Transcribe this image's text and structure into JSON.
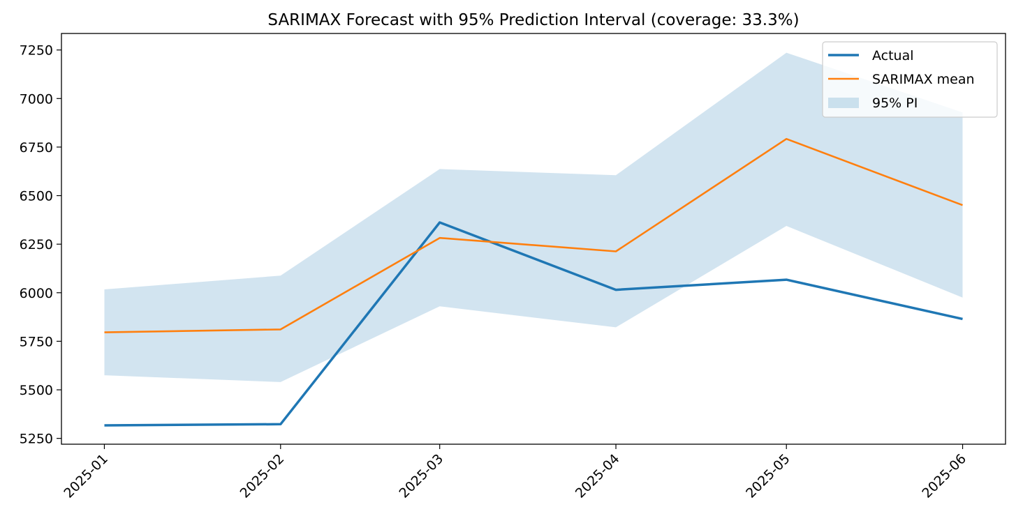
{
  "chart_data": {
    "type": "line",
    "title": "SARIMAX Forecast with 95% Prediction Interval (coverage: 33.3%)",
    "xlabel": "",
    "ylabel": "",
    "x": [
      "2025-01",
      "2025-02",
      "2025-03",
      "2025-04",
      "2025-05",
      "2025-06"
    ],
    "x_days": [
      0,
      31,
      59,
      90,
      120,
      151
    ],
    "xlim_days": [
      -7.55,
      158.55
    ],
    "ylim": [
      5220,
      7335
    ],
    "yticks": [
      5250,
      5500,
      5750,
      6000,
      6250,
      6500,
      6750,
      7000,
      7250
    ],
    "grid": false,
    "legend_position": "top-right",
    "series": [
      {
        "name": "Actual",
        "kind": "line",
        "color": "#1f77b4",
        "values": [
          5317,
          5323,
          6362,
          6015,
          6067,
          5865
        ]
      },
      {
        "name": "SARIMAX mean",
        "kind": "line",
        "color": "#ff7f0e",
        "values": [
          5796,
          5811,
          6282,
          6213,
          6792,
          6451
        ]
      },
      {
        "name": "95% PI",
        "kind": "band",
        "color": "#1f77b4",
        "lower": [
          5575,
          5540,
          5930,
          5822,
          6344,
          5975
        ],
        "upper": [
          6017,
          6088,
          6637,
          6605,
          7236,
          6928
        ]
      }
    ]
  }
}
